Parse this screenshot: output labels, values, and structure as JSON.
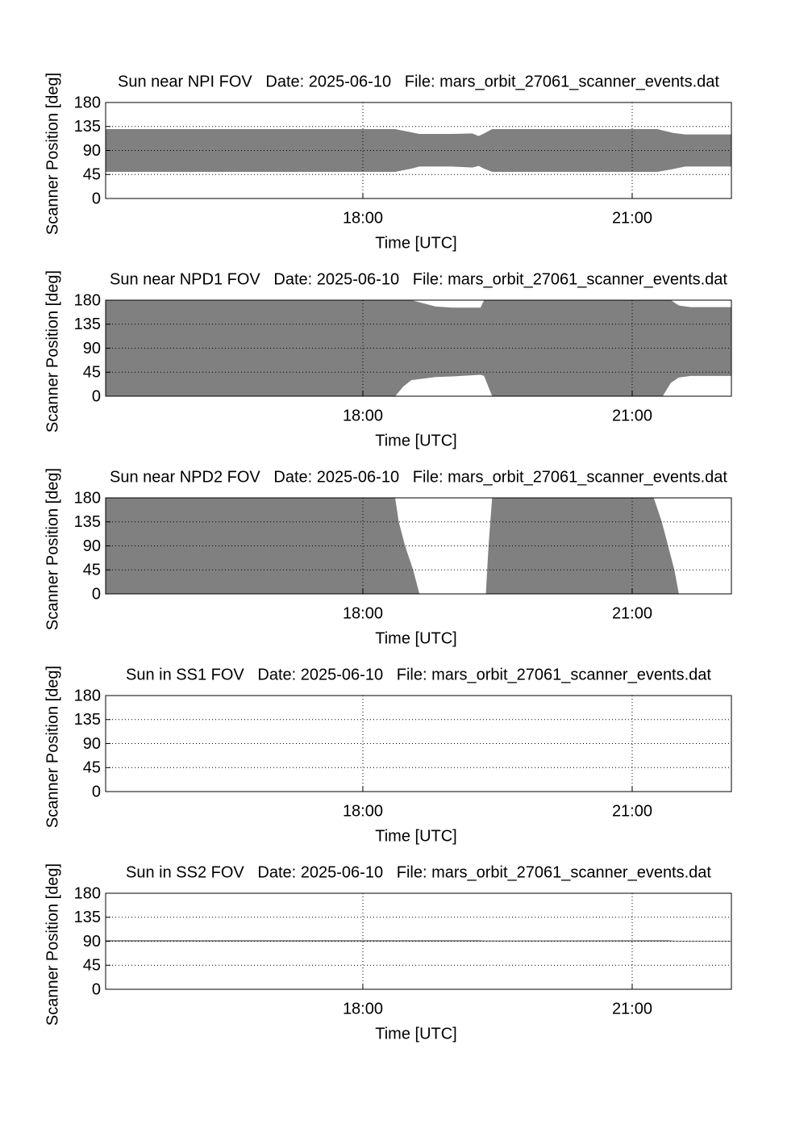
{
  "chart_data": [
    {
      "type": "range",
      "title": "Sun near NPI FOV   Date: 2025-06-10   File: mars_orbit_27061_scanner_events.dat",
      "xlabel": "Time [UTC]",
      "ylabel": "Scanner Position [deg]",
      "x": [
        15.135,
        18.36,
        18.54,
        18.63,
        18.99,
        19.22,
        19.29,
        19.35,
        19.44,
        21.28,
        21.45,
        21.59,
        22.105
      ],
      "high": [
        130,
        130,
        124,
        121,
        121,
        122,
        117,
        122,
        130,
        130,
        123,
        120,
        120
      ],
      "low": [
        50,
        50,
        56,
        60,
        60,
        58,
        61,
        56,
        50,
        50,
        55,
        60,
        60
      ],
      "color": "#808080",
      "xlim": [
        15.135,
        22.105
      ],
      "ylim": [
        0,
        180
      ],
      "xticks": [
        {
          "value": 18,
          "label": "18:00"
        },
        {
          "value": 21,
          "label": "21:00"
        }
      ],
      "yticks": [
        0,
        45,
        90,
        135,
        180
      ],
      "grid": true
    },
    {
      "type": "range",
      "title": "Sun near NPD1 FOV   Date: 2025-06-10   File: mars_orbit_27061_scanner_events.dat",
      "xlabel": "Time [UTC]",
      "ylabel": "Scanner Position [deg]",
      "x": [
        15.135,
        18.36,
        18.45,
        18.54,
        18.81,
        19.0,
        19.31,
        19.35,
        19.44,
        21.25,
        21.34,
        21.43,
        21.52,
        21.65,
        22.105
      ],
      "high": [
        180,
        180,
        180,
        180,
        168,
        166,
        166,
        180,
        180,
        180,
        180,
        180,
        170,
        167,
        167
      ],
      "low": [
        0,
        0,
        18,
        30,
        36,
        37,
        40,
        38,
        0,
        0,
        0,
        25,
        35,
        38,
        38
      ],
      "color": "#808080",
      "xlim": [
        15.135,
        22.105
      ],
      "ylim": [
        0,
        180
      ],
      "xticks": [
        {
          "value": 18,
          "label": "18:00"
        },
        {
          "value": 21,
          "label": "21:00"
        }
      ],
      "yticks": [
        0,
        45,
        90,
        135,
        180
      ],
      "grid": true
    },
    {
      "type": "range",
      "title": "Sun near NPD2 FOV   Date: 2025-06-10   File: mars_orbit_27061_scanner_events.dat",
      "xlabel": "Time [UTC]",
      "ylabel": "Scanner Position [deg]",
      "x": [
        15.135,
        18.36,
        18.4,
        18.47,
        18.56,
        18.63,
        19.37,
        19.4,
        19.44,
        21.24,
        21.33,
        21.4,
        21.47,
        21.52,
        22.105
      ],
      "high": [
        180,
        180,
        135,
        90,
        45,
        0,
        0,
        90,
        180,
        180,
        135,
        90,
        45,
        0,
        0
      ],
      "low": [
        0,
        0,
        0,
        0,
        0,
        0,
        0,
        0,
        0,
        0,
        0,
        0,
        0,
        0,
        0
      ],
      "color": "#808080",
      "xlim": [
        15.135,
        22.105
      ],
      "ylim": [
        0,
        180
      ],
      "xticks": [
        {
          "value": 18,
          "label": "18:00"
        },
        {
          "value": 21,
          "label": "21:00"
        }
      ],
      "yticks": [
        0,
        45,
        90,
        135,
        180
      ],
      "grid": true
    },
    {
      "type": "range",
      "title": "Sun in SS1 FOV   Date: 2025-06-10   File: mars_orbit_27061_scanner_events.dat",
      "xlabel": "Time [UTC]",
      "ylabel": "Scanner Position [deg]",
      "x": [],
      "high": [],
      "low": [],
      "color": "#808080",
      "xlim": [
        15.135,
        22.105
      ],
      "ylim": [
        0,
        180
      ],
      "xticks": [
        {
          "value": 18,
          "label": "18:00"
        },
        {
          "value": 21,
          "label": "21:00"
        }
      ],
      "yticks": [
        0,
        45,
        90,
        135,
        180
      ],
      "grid": true
    },
    {
      "type": "range",
      "title": "Sun in SS2 FOV   Date: 2025-06-10   File: mars_orbit_27061_scanner_events.dat",
      "xlabel": "Time [UTC]",
      "ylabel": "Scanner Position [deg]",
      "x": [
        15.135,
        19.29,
        19.35,
        21.4,
        21.47,
        22.105
      ],
      "high": [
        92,
        92,
        91.5,
        92,
        91,
        91
      ],
      "low": [
        89.5,
        89.5,
        89.5,
        89.5,
        89.5,
        89.5
      ],
      "color": "#808080",
      "xlim": [
        15.135,
        22.105
      ],
      "ylim": [
        0,
        180
      ],
      "xticks": [
        {
          "value": 18,
          "label": "18:00"
        },
        {
          "value": 21,
          "label": "21:00"
        }
      ],
      "yticks": [
        0,
        45,
        90,
        135,
        180
      ],
      "grid": true
    }
  ]
}
